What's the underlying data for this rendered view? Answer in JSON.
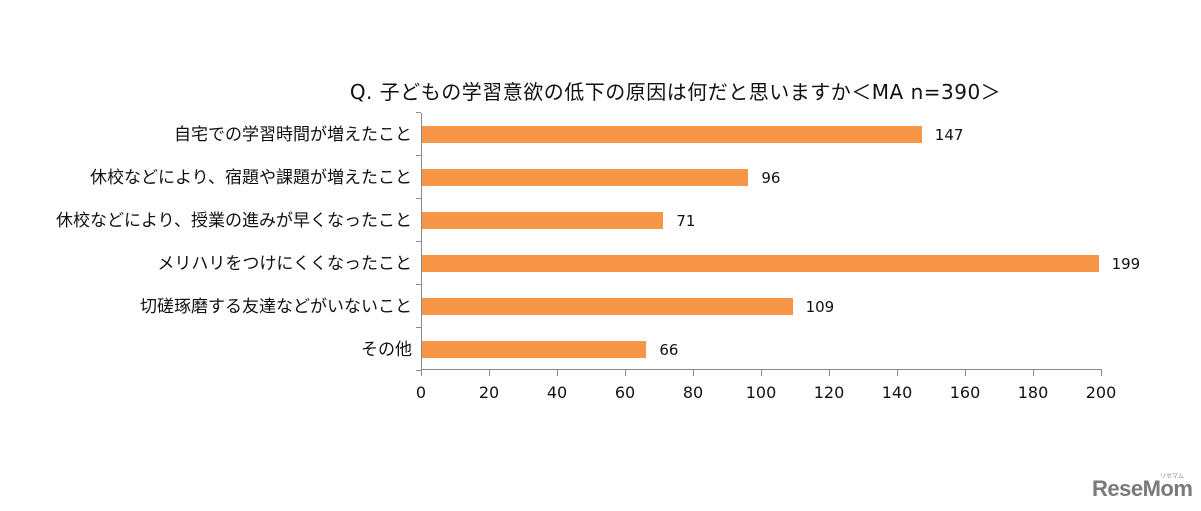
{
  "chart_data": {
    "type": "bar",
    "orientation": "horizontal",
    "title": "Q. 子どもの学習意欲の低下の原因は何だと思いますか＜MA n=390＞",
    "categories": [
      "自宅での学習時間が増えたこと",
      "休校などにより、宿題や課題が増えたこと",
      "休校などにより、授業の進みが早くなったこと",
      "メリハリをつけにくくなったこと",
      "切磋琢磨する友達などがいないこと",
      "その他"
    ],
    "values": [
      147,
      96,
      71,
      199,
      109,
      66
    ],
    "value_labels": [
      "147",
      "96",
      "71",
      "199",
      "109",
      "66"
    ],
    "xlabel": "",
    "ylabel": "",
    "xlim": [
      0,
      200
    ],
    "xticks": [
      "0",
      "20",
      "40",
      "60",
      "80",
      "100",
      "120",
      "140",
      "160",
      "180",
      "200"
    ],
    "grid": false,
    "legend": null,
    "bar_color": "#f79646"
  },
  "watermark": {
    "text": "ReseMom",
    "ruby": "リセマム"
  }
}
